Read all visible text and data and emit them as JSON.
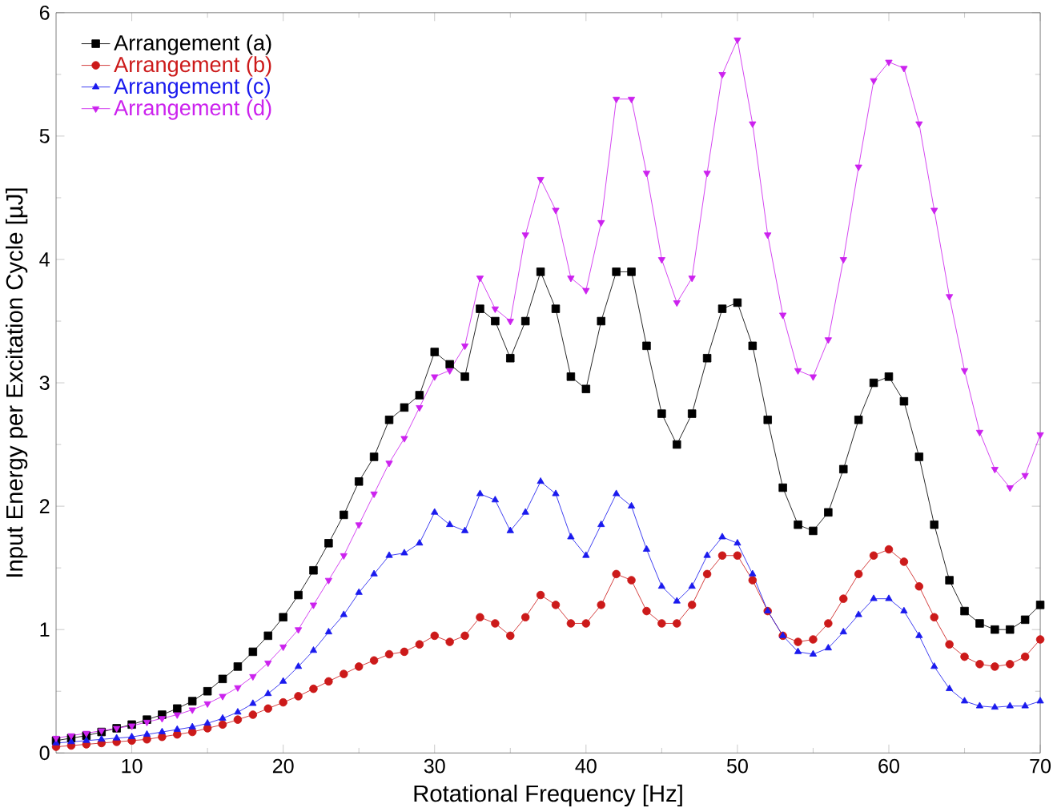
{
  "chart_data": {
    "type": "line",
    "xlabel": "Rotational Frequency [Hz]",
    "ylabel": "Input Energy per Excitation Cycle [µJ]",
    "x": [
      5,
      6,
      7,
      8,
      9,
      10,
      11,
      12,
      13,
      14,
      15,
      16,
      17,
      18,
      19,
      20,
      21,
      22,
      23,
      24,
      25,
      26,
      27,
      28,
      29,
      30,
      31,
      32,
      33,
      34,
      35,
      36,
      37,
      38,
      39,
      40,
      41,
      42,
      43,
      44,
      45,
      46,
      47,
      48,
      49,
      50,
      51,
      52,
      53,
      54,
      55,
      56,
      57,
      58,
      59,
      60,
      61,
      62,
      63,
      64,
      65,
      66,
      67,
      68,
      69,
      70
    ],
    "xlim": [
      5,
      70
    ],
    "ylim": [
      0,
      6
    ],
    "xticks": [
      10,
      20,
      30,
      40,
      50,
      60,
      70
    ],
    "yticks": [
      0,
      1,
      2,
      3,
      4,
      5,
      6
    ],
    "grid": false,
    "legend": "top left",
    "line_style": "solid",
    "series": [
      {
        "name": "Arrangement (a)",
        "color": "#000000",
        "marker": "square",
        "values": [
          0.1,
          0.12,
          0.14,
          0.17,
          0.2,
          0.23,
          0.27,
          0.31,
          0.36,
          0.42,
          0.5,
          0.6,
          0.7,
          0.82,
          0.95,
          1.1,
          1.28,
          1.48,
          1.7,
          1.93,
          2.2,
          2.4,
          2.7,
          2.8,
          2.9,
          3.25,
          3.15,
          3.05,
          3.6,
          3.5,
          3.2,
          3.5,
          3.9,
          3.6,
          3.05,
          2.95,
          3.5,
          3.9,
          3.9,
          3.3,
          2.75,
          2.5,
          2.75,
          3.2,
          3.6,
          3.65,
          3.3,
          2.7,
          2.15,
          1.85,
          1.8,
          1.95,
          2.3,
          2.7,
          3.0,
          3.05,
          2.85,
          2.4,
          1.85,
          1.4,
          1.15,
          1.05,
          1.0,
          1.0,
          1.08,
          1.2
        ]
      },
      {
        "name": "Arrangement (b)",
        "color": "#cc1a1a",
        "marker": "circle",
        "values": [
          0.05,
          0.06,
          0.07,
          0.08,
          0.09,
          0.1,
          0.11,
          0.13,
          0.15,
          0.17,
          0.2,
          0.23,
          0.27,
          0.31,
          0.36,
          0.41,
          0.46,
          0.52,
          0.58,
          0.64,
          0.7,
          0.75,
          0.8,
          0.82,
          0.88,
          0.95,
          0.9,
          0.95,
          1.1,
          1.05,
          0.95,
          1.1,
          1.28,
          1.2,
          1.05,
          1.05,
          1.2,
          1.45,
          1.4,
          1.15,
          1.05,
          1.05,
          1.2,
          1.45,
          1.6,
          1.6,
          1.4,
          1.15,
          0.95,
          0.9,
          0.92,
          1.05,
          1.25,
          1.45,
          1.6,
          1.65,
          1.55,
          1.35,
          1.1,
          0.88,
          0.78,
          0.72,
          0.7,
          0.72,
          0.78,
          0.92
        ]
      },
      {
        "name": "Arrangement (c)",
        "color": "#1a1aee",
        "marker": "triangle",
        "values": [
          0.08,
          0.09,
          0.1,
          0.11,
          0.12,
          0.13,
          0.15,
          0.17,
          0.19,
          0.21,
          0.24,
          0.28,
          0.33,
          0.4,
          0.48,
          0.58,
          0.7,
          0.83,
          0.98,
          1.12,
          1.3,
          1.45,
          1.6,
          1.62,
          1.7,
          1.95,
          1.85,
          1.8,
          2.1,
          2.05,
          1.8,
          1.95,
          2.2,
          2.1,
          1.75,
          1.6,
          1.85,
          2.1,
          2.0,
          1.65,
          1.35,
          1.23,
          1.35,
          1.6,
          1.75,
          1.7,
          1.45,
          1.15,
          0.95,
          0.82,
          0.8,
          0.85,
          0.98,
          1.12,
          1.25,
          1.25,
          1.15,
          0.95,
          0.7,
          0.52,
          0.42,
          0.38,
          0.37,
          0.38,
          0.38,
          0.42
        ]
      },
      {
        "name": "Arrangement (d)",
        "color": "#cc22ee",
        "marker": "triangle down",
        "values": [
          0.12,
          0.14,
          0.16,
          0.18,
          0.2,
          0.22,
          0.25,
          0.28,
          0.31,
          0.35,
          0.4,
          0.46,
          0.53,
          0.62,
          0.73,
          0.86,
          1.0,
          1.2,
          1.4,
          1.6,
          1.85,
          2.1,
          2.35,
          2.55,
          2.8,
          3.05,
          3.1,
          3.3,
          3.85,
          3.6,
          3.5,
          4.2,
          4.65,
          4.4,
          3.85,
          3.75,
          4.3,
          5.3,
          5.3,
          4.7,
          4.0,
          3.65,
          3.85,
          4.7,
          5.5,
          5.78,
          5.1,
          4.2,
          3.55,
          3.1,
          3.05,
          3.35,
          4.0,
          4.75,
          5.45,
          5.6,
          5.55,
          5.1,
          4.4,
          3.7,
          3.1,
          2.6,
          2.3,
          2.15,
          2.25,
          2.58
        ]
      }
    ]
  }
}
